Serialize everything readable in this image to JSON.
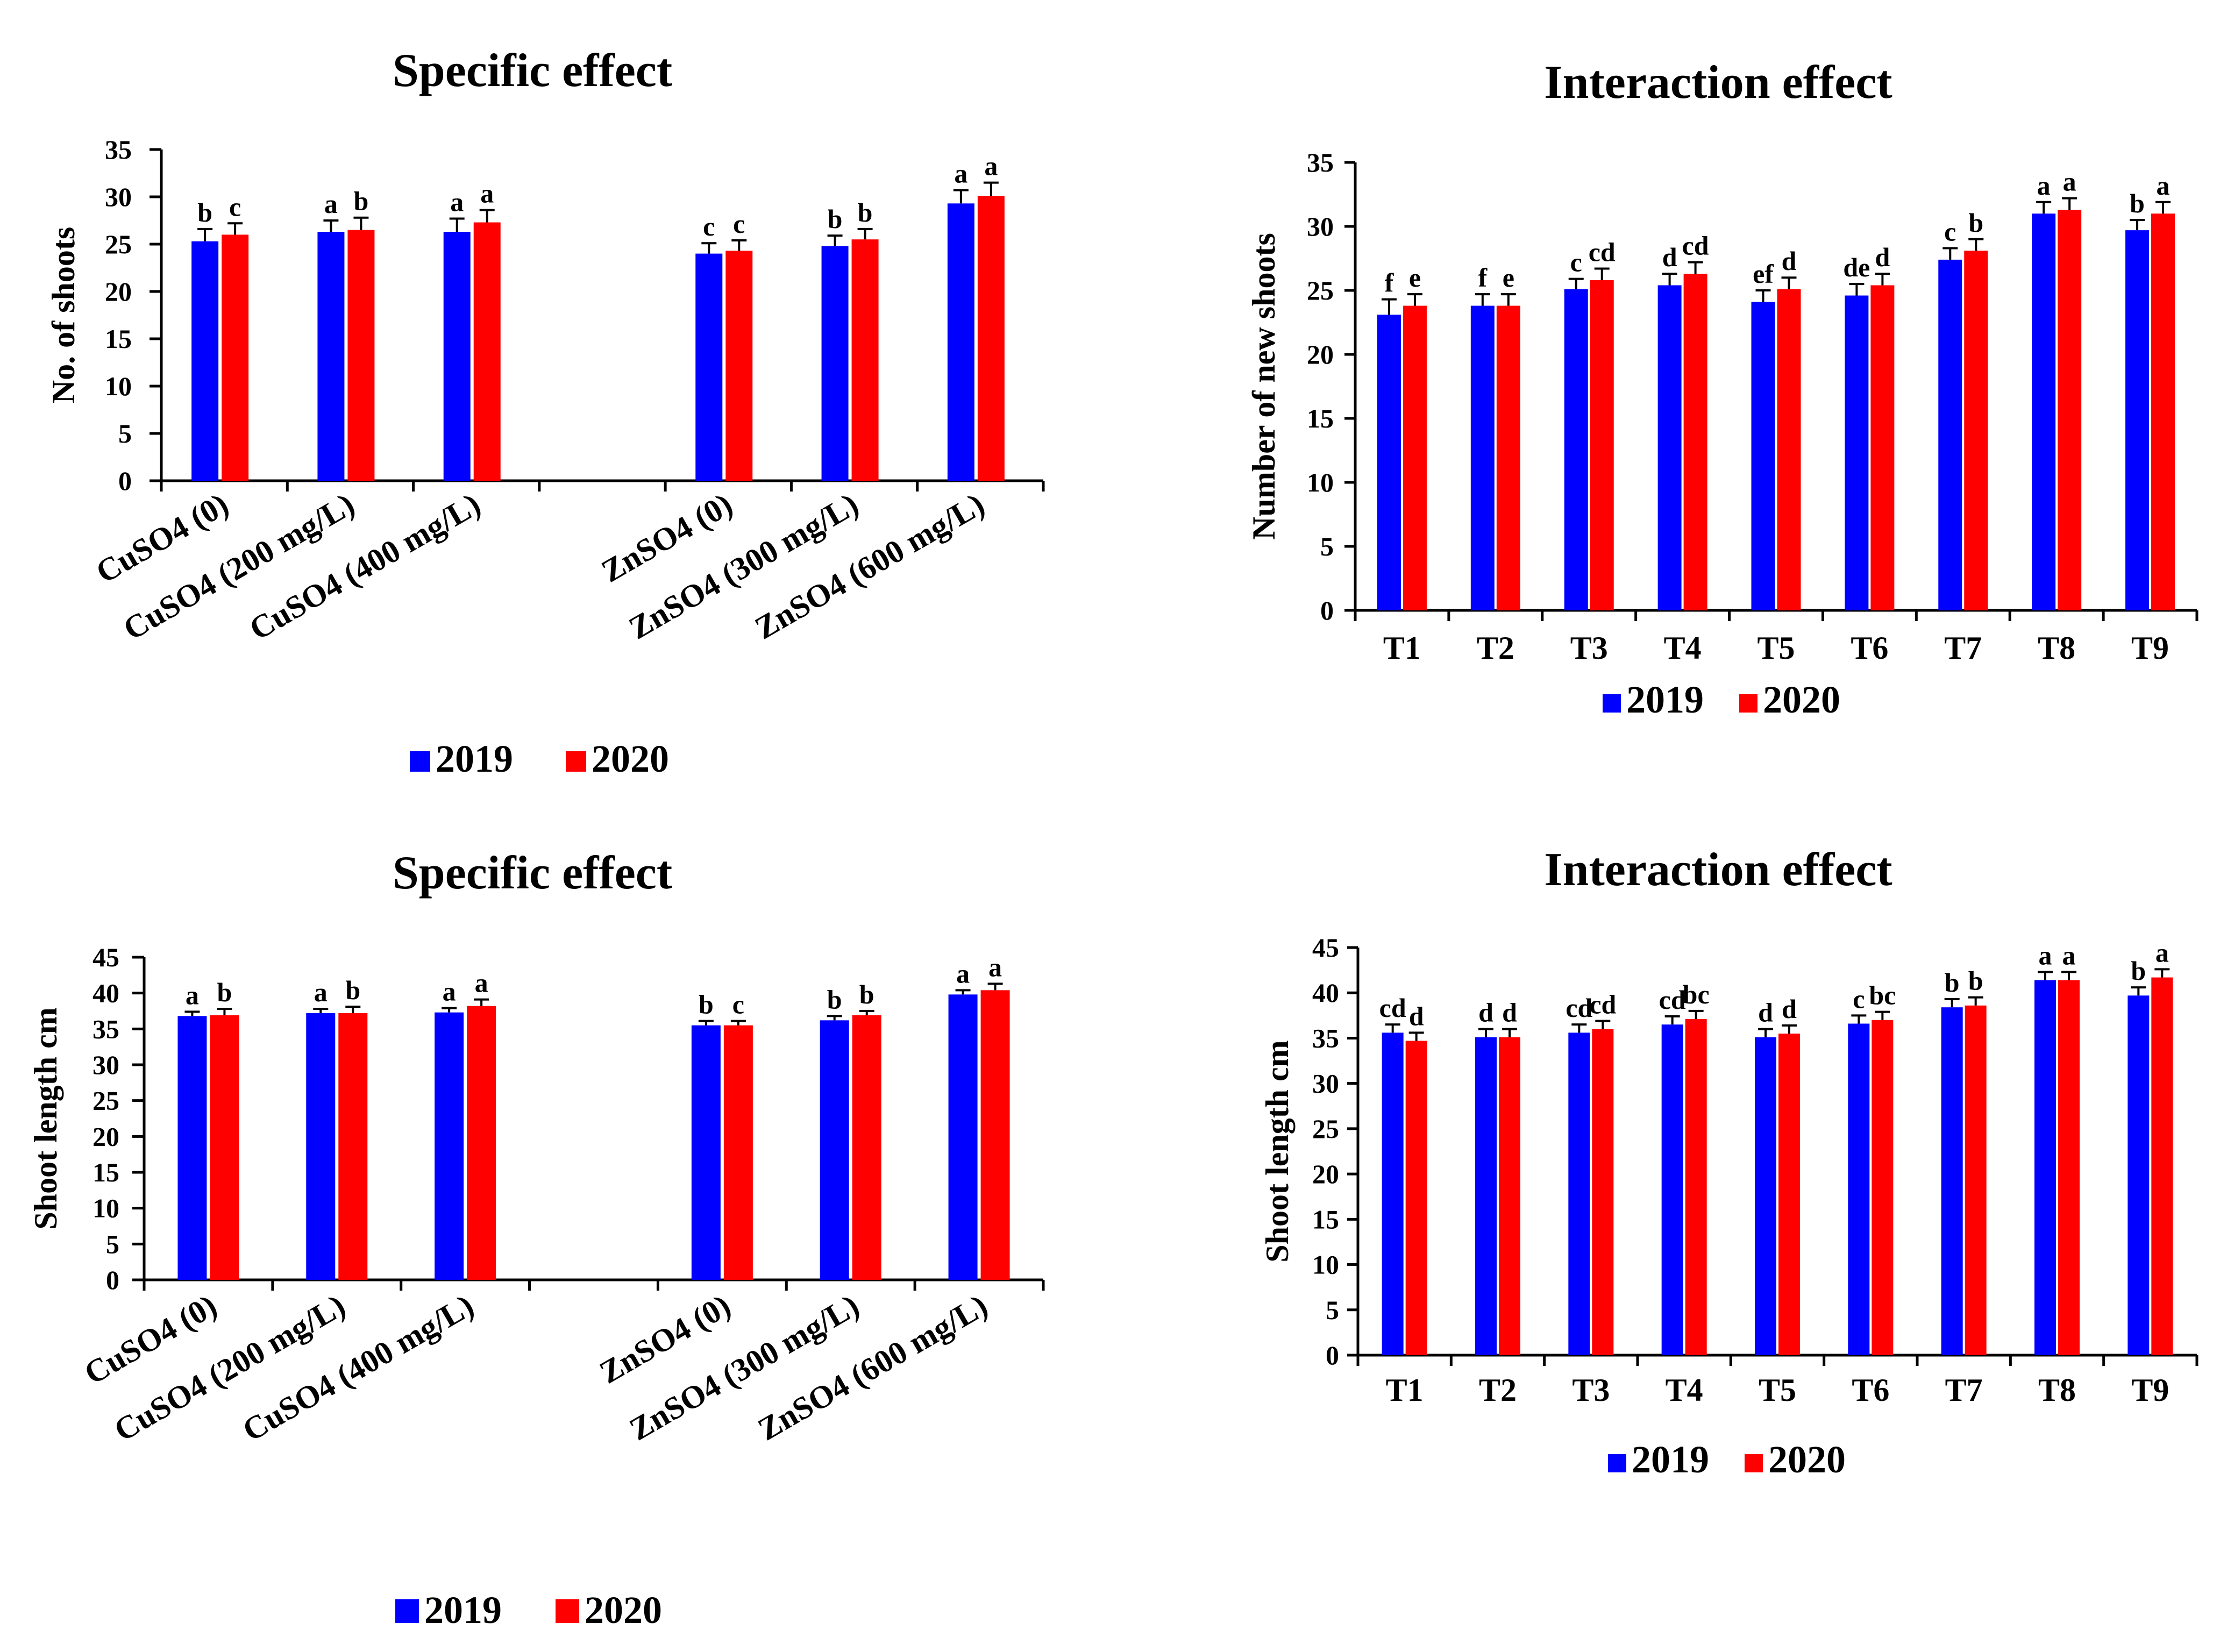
{
  "chart_data": [
    {
      "type": "bar",
      "title": "Specific effect",
      "ylabel": "No. of shoots",
      "xlabel": "",
      "ylim": [
        0,
        35
      ],
      "yticks": [
        0,
        5,
        10,
        15,
        20,
        25,
        30,
        35
      ],
      "grid": false,
      "legend": "bottom",
      "categories": [
        "CuSO4 (0)",
        "CuSO4 (200 mg/L)",
        "CuSO4 (400 mg/L)",
        "",
        "ZnSO4 (0)",
        "ZnSO4 (300 mg/L)",
        "ZnSO4 (600 mg/L)"
      ],
      "series": [
        {
          "name": "2019",
          "color": "#0000ff",
          "values": [
            25.3,
            26.3,
            26.3,
            null,
            24.0,
            24.8,
            29.3
          ],
          "errors": [
            1.3,
            1.2,
            1.4,
            null,
            1.1,
            1.1,
            1.4
          ],
          "letters": [
            "b",
            "a",
            "a",
            "",
            "c",
            "b",
            "a"
          ]
        },
        {
          "name": "2020",
          "color": "#ff0000",
          "values": [
            26.0,
            26.5,
            27.3,
            null,
            24.3,
            25.5,
            30.1
          ],
          "errors": [
            1.2,
            1.3,
            1.3,
            null,
            1.1,
            1.1,
            1.4
          ],
          "letters": [
            "c",
            "b",
            "a",
            "",
            "c",
            "b",
            "a"
          ]
        }
      ]
    },
    {
      "type": "bar",
      "title": "Interaction effect",
      "ylabel": "Number of new shoots",
      "xlabel": "",
      "ylim": [
        0,
        35
      ],
      "yticks": [
        0,
        5,
        10,
        15,
        20,
        25,
        30,
        35
      ],
      "grid": false,
      "legend": "bottom",
      "categories": [
        "T1",
        "T2",
        "T3",
        "T4",
        "T5",
        "T6",
        "T7",
        "T8",
        "T9"
      ],
      "series": [
        {
          "name": "2019",
          "color": "#0000ff",
          "values": [
            23.1,
            23.8,
            25.1,
            25.4,
            24.1,
            24.6,
            27.4,
            31.0,
            29.7
          ],
          "errors": [
            1.2,
            0.9,
            0.8,
            0.9,
            0.9,
            0.9,
            0.9,
            0.9,
            0.8
          ],
          "letters": [
            "f",
            "f",
            "c",
            "d",
            "ef",
            "de",
            "c",
            "a",
            "b"
          ]
        },
        {
          "name": "2020",
          "color": "#ff0000",
          "values": [
            23.8,
            23.8,
            25.8,
            26.3,
            25.1,
            25.4,
            28.1,
            31.3,
            31.0
          ],
          "errors": [
            0.9,
            0.9,
            0.9,
            0.9,
            0.9,
            0.9,
            0.9,
            0.9,
            0.9
          ],
          "letters": [
            "e",
            "e",
            "cd",
            "cd",
            "d",
            "d",
            "b",
            "a",
            "a"
          ]
        }
      ]
    },
    {
      "type": "bar",
      "title": "Specific effect",
      "ylabel": "Shoot length   cm",
      "xlabel": "",
      "ylim": [
        0,
        45
      ],
      "yticks": [
        0,
        5,
        10,
        15,
        20,
        25,
        30,
        35,
        40,
        45
      ],
      "grid": false,
      "legend": "bottom",
      "categories": [
        "CuSO4 (0)",
        "CuSO4 (200 mg/L)",
        "CuSO4 (400 mg/L)",
        "",
        "ZnSO4 (0)",
        "ZnSO4 (300 mg/L)",
        "ZnSO4 (600 mg/L)"
      ],
      "series": [
        {
          "name": "2019",
          "color": "#0000ff",
          "values": [
            36.8,
            37.2,
            37.3,
            null,
            35.5,
            36.2,
            39.8
          ],
          "errors": [
            0.6,
            0.6,
            0.6,
            null,
            0.6,
            0.6,
            0.6
          ],
          "letters": [
            "a",
            "a",
            "a",
            "",
            "b",
            "b",
            "a"
          ]
        },
        {
          "name": "2020",
          "color": "#ff0000",
          "values": [
            36.9,
            37.2,
            38.2,
            null,
            35.5,
            36.9,
            40.4
          ],
          "errors": [
            0.9,
            0.9,
            0.9,
            null,
            0.6,
            0.6,
            0.9
          ],
          "letters": [
            "b",
            "b",
            "a",
            "",
            "c",
            "b",
            "a"
          ]
        }
      ]
    },
    {
      "type": "bar",
      "title": "Interaction effect",
      "ylabel": "Shoot length cm",
      "xlabel": "",
      "ylim": [
        0,
        45
      ],
      "yticks": [
        0,
        5,
        10,
        15,
        20,
        25,
        30,
        35,
        40,
        45
      ],
      "grid": false,
      "legend": "bottom",
      "categories": [
        "T1",
        "T2",
        "T3",
        "T4",
        "T5",
        "T6",
        "T7",
        "T8",
        "T9"
      ],
      "series": [
        {
          "name": "2019",
          "color": "#0000ff",
          "values": [
            35.6,
            35.1,
            35.6,
            36.5,
            35.1,
            36.6,
            38.4,
            41.4,
            39.7
          ],
          "errors": [
            0.9,
            0.9,
            0.9,
            0.9,
            0.9,
            0.9,
            0.9,
            0.9,
            0.9
          ],
          "letters": [
            "cd",
            "d",
            "cd",
            "cd",
            "d",
            "c",
            "b",
            "a",
            "b"
          ]
        },
        {
          "name": "2020",
          "color": "#ff0000",
          "values": [
            34.7,
            35.1,
            36.0,
            37.1,
            35.5,
            37.0,
            38.6,
            41.4,
            41.7
          ],
          "errors": [
            0.9,
            0.9,
            0.9,
            0.9,
            0.9,
            0.9,
            0.9,
            0.9,
            0.9
          ],
          "letters": [
            "d",
            "d",
            "cd",
            "bc",
            "d",
            "bc",
            "b",
            "a",
            "a"
          ]
        }
      ]
    }
  ]
}
